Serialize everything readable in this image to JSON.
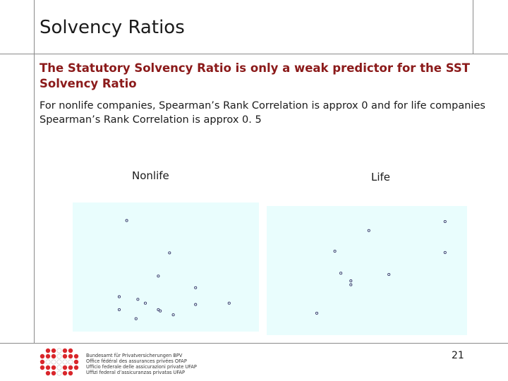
{
  "slide": {
    "title": "Solvency Ratios",
    "heading": "The Statutory Solvency Ratio is only a weak predictor for the SST Solvency Ratio",
    "body": "For nonlife companies, Spearman’s Rank Correlation is approx 0 and for life companies Spearman’s Rank Correlation is approx 0. 5",
    "page_number": "21"
  },
  "footer": {
    "logo_icon": "swiss-cross-dot-grid-icon",
    "org_lines": [
      "Bundesamt für Privatversicherungen BPV",
      "Office fédéral des assurances privées OFAP",
      "Ufficio federale delle assicurazioni private UFAP",
      "Uffizi federal d’assicuranzas privatas UFAP"
    ],
    "logo_color": "#d9262b"
  },
  "colors": {
    "heading": "#8b1a1a",
    "plot_background": "#e9fdfd",
    "marker": "#3a3a6a"
  },
  "chart_data": [
    {
      "type": "scatter",
      "title": "Nonlife",
      "xlabel": "",
      "ylabel": "",
      "xlim": [
        0,
        1
      ],
      "ylim": [
        0,
        1
      ],
      "grid": false,
      "points": [
        {
          "x": 0.29,
          "y": 0.86
        },
        {
          "x": 0.52,
          "y": 0.61
        },
        {
          "x": 0.46,
          "y": 0.43
        },
        {
          "x": 0.66,
          "y": 0.34
        },
        {
          "x": 0.84,
          "y": 0.22
        },
        {
          "x": 0.25,
          "y": 0.27
        },
        {
          "x": 0.35,
          "y": 0.25
        },
        {
          "x": 0.39,
          "y": 0.22
        },
        {
          "x": 0.66,
          "y": 0.21
        },
        {
          "x": 0.25,
          "y": 0.17
        },
        {
          "x": 0.46,
          "y": 0.17
        },
        {
          "x": 0.47,
          "y": 0.16
        },
        {
          "x": 0.54,
          "y": 0.13
        },
        {
          "x": 0.34,
          "y": 0.1
        }
      ]
    },
    {
      "type": "scatter",
      "title": "Life",
      "xlabel": "",
      "ylabel": "",
      "xlim": [
        0,
        1
      ],
      "ylim": [
        0,
        1
      ],
      "grid": false,
      "points": [
        {
          "x": 0.89,
          "y": 0.88
        },
        {
          "x": 0.51,
          "y": 0.81
        },
        {
          "x": 0.34,
          "y": 0.65
        },
        {
          "x": 0.89,
          "y": 0.64
        },
        {
          "x": 0.37,
          "y": 0.48
        },
        {
          "x": 0.61,
          "y": 0.47
        },
        {
          "x": 0.42,
          "y": 0.42
        },
        {
          "x": 0.42,
          "y": 0.39
        },
        {
          "x": 0.25,
          "y": 0.17
        }
      ]
    }
  ]
}
